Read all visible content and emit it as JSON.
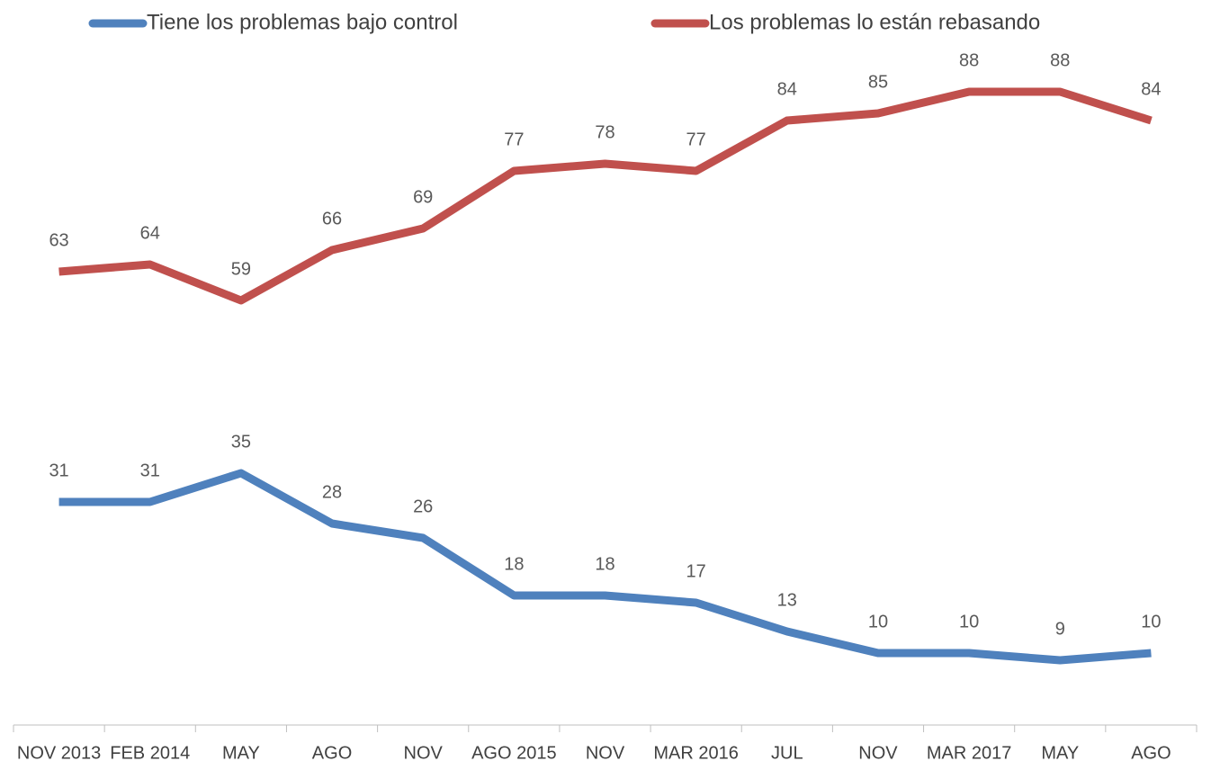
{
  "chart_data": {
    "type": "line",
    "categories": [
      "NOV 2013",
      "FEB 2014",
      "MAY",
      "AGO",
      "NOV",
      "AGO 2015",
      "NOV",
      "MAR 2016",
      "JUL",
      "NOV",
      "MAR 2017",
      "MAY",
      "AGO"
    ],
    "series": [
      {
        "name": "Tiene los problemas bajo control",
        "color": "#4f81bd",
        "values": [
          31,
          31,
          35,
          28,
          26,
          18,
          18,
          17,
          13,
          10,
          10,
          9,
          10
        ]
      },
      {
        "name": "Los problemas lo están rebasando",
        "color": "#c0504d",
        "values": [
          63,
          64,
          59,
          66,
          69,
          77,
          78,
          77,
          84,
          85,
          88,
          88,
          84
        ]
      }
    ],
    "ylim": [
      0,
      100
    ],
    "legend": "top",
    "grid": false,
    "data_labels": true
  }
}
